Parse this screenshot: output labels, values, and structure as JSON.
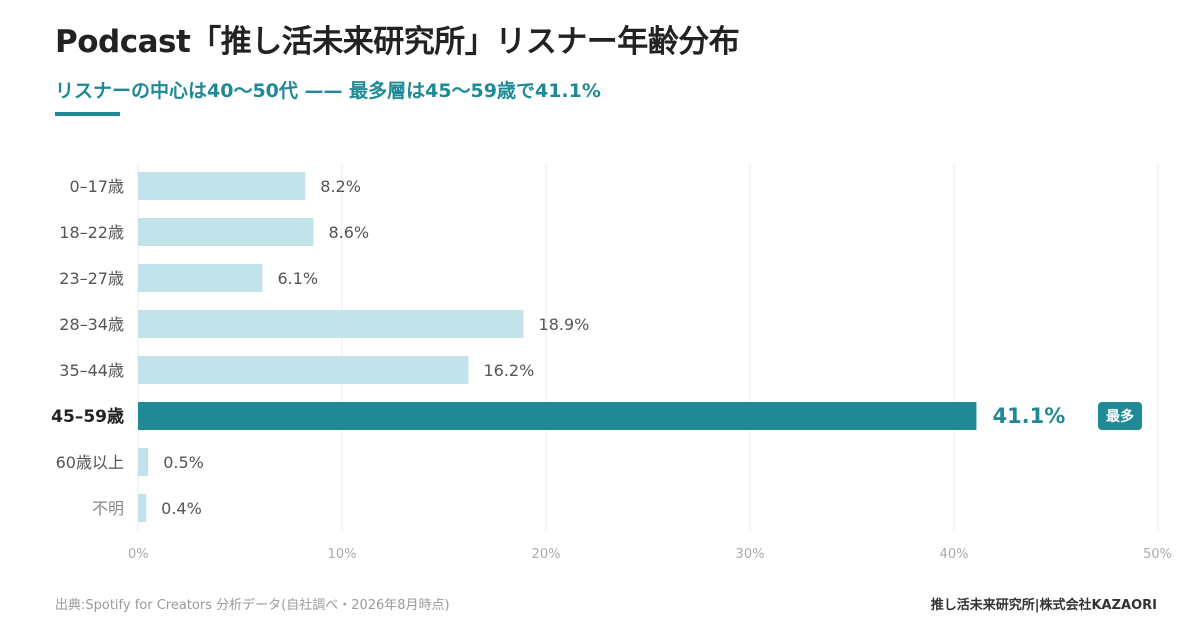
{
  "header": {
    "title": "Podcast「推し活未来研究所」リスナー年齢分布",
    "subtitle": "リスナーの中心は40〜50代 —— 最多層は45〜59歳で41.1%"
  },
  "footer": {
    "source": "出典:Spotify for Creators 分析データ(自社調べ・2026年8月時点)",
    "brand": "推し活未来研究所|株式会社KAZAORI"
  },
  "chart_data": {
    "type": "bar",
    "orientation": "horizontal",
    "categories": [
      "0–17歳",
      "18–22歳",
      "23–27歳",
      "28–34歳",
      "35–44歳",
      "45–59歳",
      "60歳以上",
      "不明"
    ],
    "values": [
      8.2,
      8.6,
      6.1,
      18.9,
      16.2,
      41.1,
      0.5,
      0.4
    ],
    "value_labels": [
      "8.2%",
      "8.6%",
      "6.1%",
      "18.9%",
      "16.2%",
      "41.1%",
      "0.5%",
      "0.4%"
    ],
    "highlight_index": 5,
    "highlight_badge": "最多",
    "xlim": [
      0,
      50
    ],
    "x_ticks": [
      0,
      10,
      20,
      30,
      40,
      50
    ],
    "x_tick_labels": [
      "0%",
      "10%",
      "20%",
      "30%",
      "40%",
      "50%"
    ],
    "grid": true,
    "colors": {
      "bar": "#c3e3ea",
      "highlight": "#1f8a96",
      "label": "#555555",
      "category": "#555555",
      "category_highlight": "#222222",
      "category_muted": "#8a8a8a",
      "grid": "#eeeeee",
      "tick": "#aaaaaa",
      "badge_text": "#ffffff"
    }
  }
}
